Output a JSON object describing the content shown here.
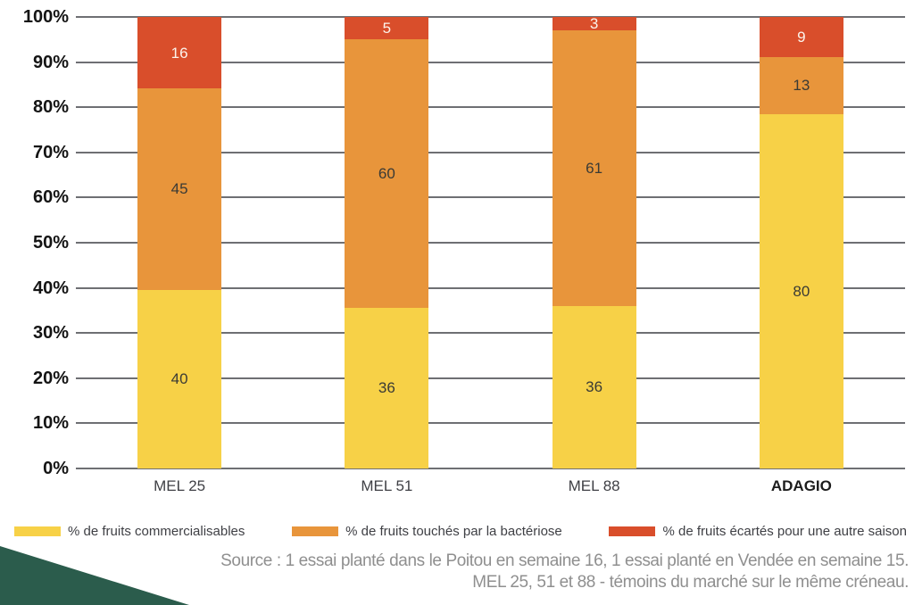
{
  "chart_data": {
    "type": "bar",
    "subtype": "stacked-100-percent",
    "title": "",
    "xlabel": "",
    "ylabel": "",
    "categories": [
      {
        "label": "MEL 25",
        "bold": false
      },
      {
        "label": "MEL 51",
        "bold": false
      },
      {
        "label": "MEL 88",
        "bold": false
      },
      {
        "label": "ADAGIO",
        "bold": true
      }
    ],
    "series": [
      {
        "name": "% de fruits commercialisables",
        "color": "#F7D147",
        "label_color": "#3a3a35",
        "values": [
          40,
          36,
          36,
          80
        ]
      },
      {
        "name": "% de fruits touchés par la bactériose",
        "color": "#E8953B",
        "label_color": "#3a3a35",
        "values": [
          45,
          60,
          61,
          13
        ]
      },
      {
        "name": "% de fruits écartés pour une autre saison",
        "color": "#D94E2B",
        "label_color": "#fcf4ec",
        "values": [
          16,
          5,
          3,
          9
        ]
      }
    ],
    "y_axis": {
      "ticks": [
        "100%",
        "90%",
        "80%",
        "70%",
        "60%",
        "50%",
        "40%",
        "30%",
        "20%",
        "10%",
        "0%"
      ],
      "min": 0,
      "max": 100
    },
    "grid": true,
    "grid_color": "#55565a",
    "legend_position": "bottom"
  },
  "source": {
    "line1": "Source : 1 essai planté dans le Poitou en semaine 16, 1 essai planté en Vendée en semaine 15.",
    "line2": "MEL 25, 51 et 88 - témoins du marché sur le même créneau."
  },
  "decor": {
    "corner_triangle_color": "#2B5C4C"
  }
}
